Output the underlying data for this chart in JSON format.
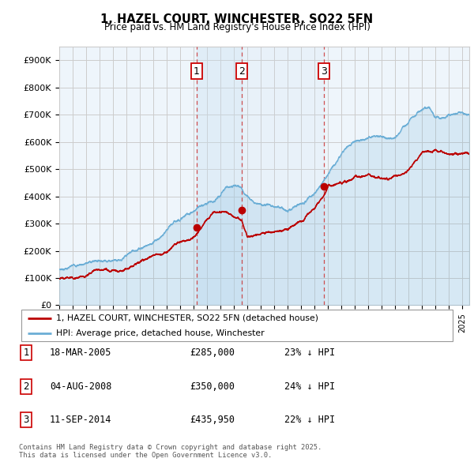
{
  "title": "1, HAZEL COURT, WINCHESTER, SO22 5FN",
  "subtitle": "Price paid vs. HM Land Registry's House Price Index (HPI)",
  "legend_property": "1, HAZEL COURT, WINCHESTER, SO22 5FN (detached house)",
  "legend_hpi": "HPI: Average price, detached house, Winchester",
  "footer": "Contains HM Land Registry data © Crown copyright and database right 2025.\nThis data is licensed under the Open Government Licence v3.0.",
  "purchases": [
    {
      "num": 1,
      "date": "18-MAR-2005",
      "price": 285000,
      "pct": "23%",
      "x_year": 2005.21
    },
    {
      "num": 2,
      "date": "04-AUG-2008",
      "price": 350000,
      "pct": "24%",
      "x_year": 2008.58
    },
    {
      "num": 3,
      "date": "11-SEP-2014",
      "price": 435950,
      "pct": "22%",
      "x_year": 2014.7
    }
  ],
  "x_start": 1995.0,
  "x_end": 2025.5,
  "y_min": 0,
  "y_max": 950000,
  "y_ticks": [
    0,
    100000,
    200000,
    300000,
    400000,
    500000,
    600000,
    700000,
    800000,
    900000
  ],
  "y_tick_labels": [
    "£0",
    "£100K",
    "£200K",
    "£300K",
    "£400K",
    "£500K",
    "£600K",
    "£700K",
    "£800K",
    "£900K"
  ],
  "x_ticks": [
    1995,
    1996,
    1997,
    1998,
    1999,
    2000,
    2001,
    2002,
    2003,
    2004,
    2005,
    2006,
    2007,
    2008,
    2009,
    2010,
    2011,
    2012,
    2013,
    2014,
    2015,
    2016,
    2017,
    2018,
    2019,
    2020,
    2021,
    2022,
    2023,
    2024,
    2025
  ],
  "property_color": "#bb0000",
  "hpi_color": "#6baed6",
  "hpi_fill_color": "#ddeeff",
  "shade_color": "#d0e8f8",
  "background_color": "#eef5fb",
  "vline_color": "#cc3333",
  "grid_color": "#cccccc",
  "box_color": "#cc0000",
  "hpi_waypoints_t": [
    1995.0,
    1996.0,
    1997.0,
    1998.0,
    1999.0,
    2000.0,
    2001.0,
    2002.0,
    2003.0,
    2004.0,
    2005.0,
    2006.0,
    2007.0,
    2007.5,
    2008.0,
    2008.5,
    2009.0,
    2009.5,
    2010.0,
    2011.0,
    2012.0,
    2013.0,
    2014.0,
    2015.0,
    2016.0,
    2017.0,
    2018.0,
    2019.0,
    2020.0,
    2020.5,
    2021.0,
    2021.5,
    2022.0,
    2022.5,
    2023.0,
    2024.0,
    2025.0,
    2025.5
  ],
  "hpi_waypoints_v": [
    130000,
    145000,
    160000,
    175000,
    190000,
    210000,
    240000,
    270000,
    305000,
    345000,
    375000,
    400000,
    430000,
    460000,
    470000,
    460000,
    430000,
    420000,
    420000,
    420000,
    415000,
    435000,
    470000,
    530000,
    590000,
    630000,
    650000,
    660000,
    660000,
    700000,
    730000,
    760000,
    790000,
    790000,
    760000,
    760000,
    770000,
    760000
  ],
  "prop_waypoints_t": [
    1995.0,
    1996.0,
    1997.0,
    1998.0,
    1999.0,
    2000.0,
    2001.0,
    2002.0,
    2003.0,
    2004.0,
    2005.0,
    2005.21,
    2005.5,
    2006.0,
    2006.5,
    2007.0,
    2007.5,
    2008.0,
    2008.58,
    2009.0,
    2009.5,
    2010.0,
    2011.0,
    2012.0,
    2013.0,
    2014.0,
    2014.7,
    2015.0,
    2016.0,
    2017.0,
    2018.0,
    2019.0,
    2020.0,
    2021.0,
    2022.0,
    2023.0,
    2024.0,
    2025.0,
    2025.5
  ],
  "prop_waypoints_v": [
    98000,
    105000,
    115000,
    128000,
    142000,
    158000,
    178000,
    200000,
    225000,
    260000,
    278000,
    285000,
    310000,
    335000,
    360000,
    370000,
    370000,
    360000,
    350000,
    285000,
    290000,
    295000,
    300000,
    310000,
    330000,
    380000,
    435950,
    470000,
    490000,
    510000,
    510000,
    495000,
    500000,
    520000,
    580000,
    600000,
    585000,
    595000,
    600000
  ]
}
